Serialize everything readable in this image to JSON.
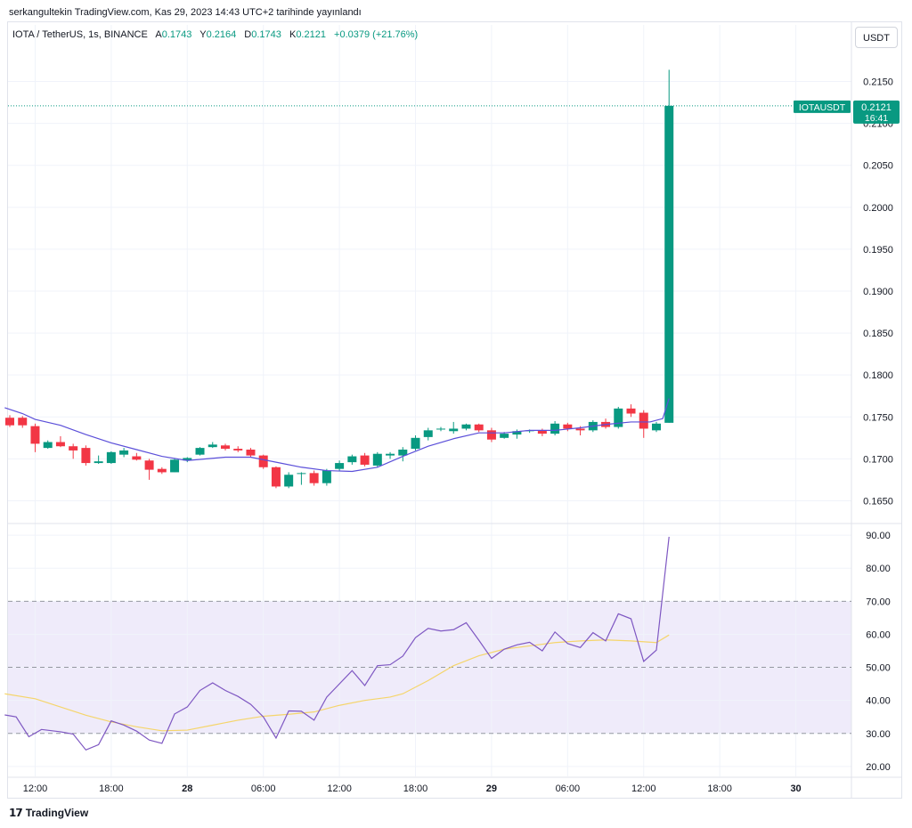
{
  "caption": "serkangultekin TradingView.com, Kas 29, 2023 14:43 UTC+2 tarihinde yayınlandı",
  "legend": {
    "symbol": "IOTA / TetherUS, 1s, BINANCE",
    "open_label": "A",
    "open": "0.1743",
    "high_label": "Y",
    "high": "0.2164",
    "low_label": "D",
    "low": "0.1743",
    "close_label": "K",
    "close": "0.2121",
    "change": "+0.0379 (+21.76%)"
  },
  "currency_button": "USDT",
  "price_tag": {
    "symbol": "IOTAUSDT",
    "price": "0.2121",
    "countdown": "16:41"
  },
  "footer_brand": "TradingView",
  "colors": {
    "up": "#089981",
    "down": "#f23645",
    "ma": "#5b4fd9",
    "rsi": "#7e57c2",
    "rsi_ma": "#f5d56b",
    "rsi_band": "#efebfa"
  },
  "chart_data": [
    {
      "type": "candlestick",
      "symbol": "IOTA / TetherUS",
      "interval": "1s",
      "ylim": [
        0.1625,
        0.2175
      ],
      "y_ticks": [
        "0.2150",
        "0.2100",
        "0.2050",
        "0.2000",
        "0.1950",
        "0.1900",
        "0.1850",
        "0.1800",
        "0.1750",
        "0.1700",
        "0.1650"
      ],
      "x_ticks": [
        {
          "label": "12:00",
          "t": 2
        },
        {
          "label": "18:00",
          "t": 8
        },
        {
          "label": "28",
          "t": 14,
          "bold": true
        },
        {
          "label": "06:00",
          "t": 20
        },
        {
          "label": "12:00",
          "t": 26
        },
        {
          "label": "18:00",
          "t": 32
        },
        {
          "label": "29",
          "t": 38,
          "bold": true
        },
        {
          "label": "06:00",
          "t": 44
        },
        {
          "label": "12:00",
          "t": 50
        },
        {
          "label": "18:00",
          "t": 56
        },
        {
          "label": "30",
          "t": 62,
          "bold": true
        }
      ],
      "candles": [
        {
          "t": 0,
          "o": 0.1749,
          "h": 0.1752,
          "l": 0.1738,
          "c": 0.174
        },
        {
          "t": 1,
          "o": 0.1749,
          "h": 0.1751,
          "l": 0.1737,
          "c": 0.174
        },
        {
          "t": 2,
          "o": 0.1739,
          "h": 0.1742,
          "l": 0.1708,
          "c": 0.1718
        },
        {
          "t": 3,
          "o": 0.1713,
          "h": 0.1722,
          "l": 0.1712,
          "c": 0.172
        },
        {
          "t": 4,
          "o": 0.172,
          "h": 0.1727,
          "l": 0.1714,
          "c": 0.1715
        },
        {
          "t": 5,
          "o": 0.1715,
          "h": 0.1718,
          "l": 0.17,
          "c": 0.171
        },
        {
          "t": 6,
          "o": 0.1713,
          "h": 0.1716,
          "l": 0.1692,
          "c": 0.1695
        },
        {
          "t": 7,
          "o": 0.1695,
          "h": 0.1704,
          "l": 0.1694,
          "c": 0.1697
        },
        {
          "t": 8,
          "o": 0.1695,
          "h": 0.1709,
          "l": 0.1694,
          "c": 0.1708
        },
        {
          "t": 9,
          "o": 0.1705,
          "h": 0.1713,
          "l": 0.1702,
          "c": 0.171
        },
        {
          "t": 10,
          "o": 0.1703,
          "h": 0.1707,
          "l": 0.1698,
          "c": 0.1699
        },
        {
          "t": 11,
          "o": 0.1698,
          "h": 0.17,
          "l": 0.1675,
          "c": 0.1687
        },
        {
          "t": 12,
          "o": 0.1688,
          "h": 0.169,
          "l": 0.1682,
          "c": 0.1684
        },
        {
          "t": 13,
          "o": 0.1684,
          "h": 0.1701,
          "l": 0.1684,
          "c": 0.1699
        },
        {
          "t": 14,
          "o": 0.1698,
          "h": 0.1702,
          "l": 0.1696,
          "c": 0.1701
        },
        {
          "t": 15,
          "o": 0.1705,
          "h": 0.1714,
          "l": 0.1704,
          "c": 0.1713
        },
        {
          "t": 16,
          "o": 0.1714,
          "h": 0.172,
          "l": 0.1713,
          "c": 0.1717
        },
        {
          "t": 17,
          "o": 0.1716,
          "h": 0.1718,
          "l": 0.171,
          "c": 0.1712
        },
        {
          "t": 18,
          "o": 0.1712,
          "h": 0.1715,
          "l": 0.1708,
          "c": 0.171
        },
        {
          "t": 19,
          "o": 0.1711,
          "h": 0.1713,
          "l": 0.1702,
          "c": 0.1704
        },
        {
          "t": 20,
          "o": 0.1704,
          "h": 0.1705,
          "l": 0.1688,
          "c": 0.169
        },
        {
          "t": 21,
          "o": 0.169,
          "h": 0.1691,
          "l": 0.1665,
          "c": 0.1667
        },
        {
          "t": 22,
          "o": 0.1667,
          "h": 0.1684,
          "l": 0.1665,
          "c": 0.1681
        },
        {
          "t": 23,
          "o": 0.1682,
          "h": 0.1684,
          "l": 0.1669,
          "c": 0.1683
        },
        {
          "t": 24,
          "o": 0.1683,
          "h": 0.1686,
          "l": 0.1668,
          "c": 0.1671
        },
        {
          "t": 25,
          "o": 0.1671,
          "h": 0.1688,
          "l": 0.1668,
          "c": 0.1686
        },
        {
          "t": 26,
          "o": 0.1688,
          "h": 0.1698,
          "l": 0.1686,
          "c": 0.1695
        },
        {
          "t": 27,
          "o": 0.1696,
          "h": 0.1705,
          "l": 0.1693,
          "c": 0.1703
        },
        {
          "t": 28,
          "o": 0.1704,
          "h": 0.1707,
          "l": 0.1691,
          "c": 0.1693
        },
        {
          "t": 29,
          "o": 0.1692,
          "h": 0.1708,
          "l": 0.169,
          "c": 0.1706
        },
        {
          "t": 30,
          "o": 0.1704,
          "h": 0.1708,
          "l": 0.17,
          "c": 0.1706
        },
        {
          "t": 31,
          "o": 0.1704,
          "h": 0.1714,
          "l": 0.1697,
          "c": 0.1711
        },
        {
          "t": 32,
          "o": 0.1712,
          "h": 0.1728,
          "l": 0.171,
          "c": 0.1725
        },
        {
          "t": 33,
          "o": 0.1726,
          "h": 0.1737,
          "l": 0.1722,
          "c": 0.1734
        },
        {
          "t": 34,
          "o": 0.1735,
          "h": 0.1738,
          "l": 0.1733,
          "c": 0.1736
        },
        {
          "t": 35,
          "o": 0.1733,
          "h": 0.1744,
          "l": 0.173,
          "c": 0.1736
        },
        {
          "t": 36,
          "o": 0.1736,
          "h": 0.1742,
          "l": 0.1734,
          "c": 0.1741
        },
        {
          "t": 37,
          "o": 0.1741,
          "h": 0.1742,
          "l": 0.1732,
          "c": 0.1734
        },
        {
          "t": 38,
          "o": 0.1734,
          "h": 0.1737,
          "l": 0.172,
          "c": 0.1723
        },
        {
          "t": 39,
          "o": 0.1725,
          "h": 0.1732,
          "l": 0.1724,
          "c": 0.173
        },
        {
          "t": 40,
          "o": 0.1729,
          "h": 0.1735,
          "l": 0.1724,
          "c": 0.1733
        },
        {
          "t": 41,
          "o": 0.1733,
          "h": 0.1735,
          "l": 0.1731,
          "c": 0.1734
        },
        {
          "t": 42,
          "o": 0.1734,
          "h": 0.1736,
          "l": 0.1727,
          "c": 0.173
        },
        {
          "t": 43,
          "o": 0.173,
          "h": 0.1745,
          "l": 0.1728,
          "c": 0.1742
        },
        {
          "t": 44,
          "o": 0.1741,
          "h": 0.1743,
          "l": 0.1733,
          "c": 0.1736
        },
        {
          "t": 45,
          "o": 0.1736,
          "h": 0.1739,
          "l": 0.1728,
          "c": 0.1734
        },
        {
          "t": 46,
          "o": 0.1734,
          "h": 0.1746,
          "l": 0.1732,
          "c": 0.1744
        },
        {
          "t": 47,
          "o": 0.1744,
          "h": 0.1748,
          "l": 0.1736,
          "c": 0.1738
        },
        {
          "t": 48,
          "o": 0.1738,
          "h": 0.1762,
          "l": 0.1736,
          "c": 0.176
        },
        {
          "t": 49,
          "o": 0.176,
          "h": 0.1765,
          "l": 0.175,
          "c": 0.1754
        },
        {
          "t": 50,
          "o": 0.1755,
          "h": 0.1758,
          "l": 0.1725,
          "c": 0.1736
        },
        {
          "t": 51,
          "o": 0.1734,
          "h": 0.1744,
          "l": 0.1732,
          "c": 0.1742
        },
        {
          "t": 52,
          "o": 0.1743,
          "h": 0.2164,
          "l": 0.1743,
          "c": 0.2121
        }
      ],
      "moving_average": [
        {
          "t": -0.4,
          "v": 0.1761
        },
        {
          "t": 1,
          "v": 0.1754
        },
        {
          "t": 2,
          "v": 0.1747
        },
        {
          "t": 4,
          "v": 0.174
        },
        {
          "t": 6,
          "v": 0.1729
        },
        {
          "t": 8,
          "v": 0.1719
        },
        {
          "t": 10,
          "v": 0.1711
        },
        {
          "t": 12,
          "v": 0.1703
        },
        {
          "t": 14,
          "v": 0.1698
        },
        {
          "t": 17,
          "v": 0.1702
        },
        {
          "t": 19,
          "v": 0.1702
        },
        {
          "t": 21,
          "v": 0.1696
        },
        {
          "t": 23,
          "v": 0.169
        },
        {
          "t": 25,
          "v": 0.1686
        },
        {
          "t": 27,
          "v": 0.1685
        },
        {
          "t": 29,
          "v": 0.169
        },
        {
          "t": 31,
          "v": 0.1703
        },
        {
          "t": 33,
          "v": 0.1715
        },
        {
          "t": 35,
          "v": 0.1724
        },
        {
          "t": 37,
          "v": 0.1731
        },
        {
          "t": 39,
          "v": 0.1731
        },
        {
          "t": 41,
          "v": 0.1734
        },
        {
          "t": 43,
          "v": 0.1734
        },
        {
          "t": 45,
          "v": 0.1737
        },
        {
          "t": 47,
          "v": 0.1741
        },
        {
          "t": 49,
          "v": 0.1744
        },
        {
          "t": 50.5,
          "v": 0.1744
        },
        {
          "t": 51.5,
          "v": 0.1748
        },
        {
          "t": 52,
          "v": 0.1772
        }
      ],
      "last_price": 0.2121
    },
    {
      "type": "line",
      "indicator": "RSI",
      "ylim": [
        17,
        93
      ],
      "y_ticks": [
        "90.00",
        "80.00",
        "70.00",
        "60.00",
        "50.00",
        "40.00",
        "30.00",
        "20.00"
      ],
      "band": [
        30,
        70
      ],
      "midline": 50,
      "series": [
        {
          "values": [
            {
              "t": -0.4,
              "v": 35.6
            },
            {
              "t": 0.5,
              "v": 35.0
            },
            {
              "t": 1.5,
              "v": 29.0
            },
            {
              "t": 2.5,
              "v": 31.2
            },
            {
              "t": 4,
              "v": 30.5
            },
            {
              "t": 5,
              "v": 29.8
            },
            {
              "t": 6,
              "v": 25.0
            },
            {
              "t": 7,
              "v": 26.6
            },
            {
              "t": 8,
              "v": 33.8
            },
            {
              "t": 9,
              "v": 32.5
            },
            {
              "t": 10,
              "v": 30.7
            },
            {
              "t": 11,
              "v": 28.0
            },
            {
              "t": 12,
              "v": 27.0
            },
            {
              "t": 13,
              "v": 35.9
            },
            {
              "t": 14,
              "v": 38.0
            },
            {
              "t": 15,
              "v": 43.0
            },
            {
              "t": 16,
              "v": 45.3
            },
            {
              "t": 17,
              "v": 43.0
            },
            {
              "t": 18,
              "v": 41.2
            },
            {
              "t": 19,
              "v": 38.8
            },
            {
              "t": 20,
              "v": 35.0
            },
            {
              "t": 21,
              "v": 28.6
            },
            {
              "t": 22,
              "v": 36.8
            },
            {
              "t": 23,
              "v": 36.7
            },
            {
              "t": 24,
              "v": 34.0
            },
            {
              "t": 25,
              "v": 41.0
            },
            {
              "t": 26,
              "v": 45.0
            },
            {
              "t": 27,
              "v": 49.0
            },
            {
              "t": 28,
              "v": 44.5
            },
            {
              "t": 29,
              "v": 50.5
            },
            {
              "t": 30,
              "v": 50.8
            },
            {
              "t": 31,
              "v": 53.4
            },
            {
              "t": 32,
              "v": 59.0
            },
            {
              "t": 33,
              "v": 61.8
            },
            {
              "t": 34,
              "v": 61.0
            },
            {
              "t": 35,
              "v": 61.4
            },
            {
              "t": 36,
              "v": 63.5
            },
            {
              "t": 37,
              "v": 58.2
            },
            {
              "t": 38,
              "v": 52.7
            },
            {
              "t": 39,
              "v": 55.5
            },
            {
              "t": 40,
              "v": 56.8
            },
            {
              "t": 41,
              "v": 57.6
            },
            {
              "t": 42,
              "v": 55.0
            },
            {
              "t": 43,
              "v": 60.7
            },
            {
              "t": 44,
              "v": 57.2
            },
            {
              "t": 45,
              "v": 56.0
            },
            {
              "t": 46,
              "v": 60.5
            },
            {
              "t": 47,
              "v": 58.0
            },
            {
              "t": 48,
              "v": 66.2
            },
            {
              "t": 49,
              "v": 64.7
            },
            {
              "t": 50,
              "v": 51.8
            },
            {
              "t": 51,
              "v": 55.2
            },
            {
              "t": 52,
              "v": 89.5
            }
          ]
        },
        {
          "values": [
            {
              "t": -0.4,
              "v": 42.0
            },
            {
              "t": 2,
              "v": 40.5
            },
            {
              "t": 4,
              "v": 38.0
            },
            {
              "t": 6,
              "v": 35.5
            },
            {
              "t": 8,
              "v": 33.5
            },
            {
              "t": 10,
              "v": 32.0
            },
            {
              "t": 12,
              "v": 30.8
            },
            {
              "t": 14,
              "v": 31.0
            },
            {
              "t": 16,
              "v": 32.5
            },
            {
              "t": 18,
              "v": 34.0
            },
            {
              "t": 20,
              "v": 35.2
            },
            {
              "t": 22,
              "v": 35.8
            },
            {
              "t": 24,
              "v": 36.5
            },
            {
              "t": 26,
              "v": 38.5
            },
            {
              "t": 28,
              "v": 40.0
            },
            {
              "t": 30,
              "v": 41.0
            },
            {
              "t": 31,
              "v": 42.0
            },
            {
              "t": 33,
              "v": 46.0
            },
            {
              "t": 35,
              "v": 50.5
            },
            {
              "t": 37,
              "v": 53.5
            },
            {
              "t": 39,
              "v": 55.5
            },
            {
              "t": 41,
              "v": 56.5
            },
            {
              "t": 43,
              "v": 57.5
            },
            {
              "t": 45,
              "v": 58.0
            },
            {
              "t": 47,
              "v": 58.3
            },
            {
              "t": 49,
              "v": 58.0
            },
            {
              "t": 51,
              "v": 57.5
            },
            {
              "t": 52,
              "v": 59.8
            }
          ]
        }
      ]
    }
  ]
}
